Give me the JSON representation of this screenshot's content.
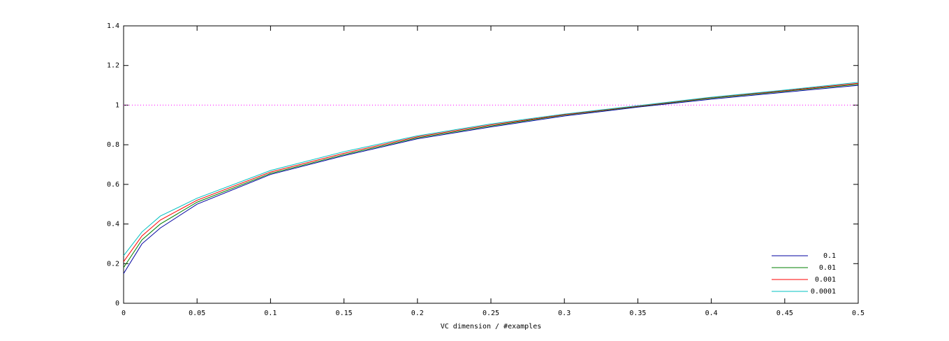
{
  "chart_data": {
    "type": "line",
    "x_label": "VC dimension / #examples",
    "x": [
      0,
      0.0125,
      0.025,
      0.05,
      0.1,
      0.15,
      0.2,
      0.25,
      0.3,
      0.35,
      0.4,
      0.45,
      0.5
    ],
    "series": [
      {
        "name": "0.1",
        "color": "#0000a0",
        "values": [
          0.15,
          0.3,
          0.38,
          0.5,
          0.65,
          0.745,
          0.83,
          0.89,
          0.945,
          0.99,
          1.03,
          1.065,
          1.1
        ]
      },
      {
        "name": "0.01",
        "color": "#008000",
        "values": [
          0.18,
          0.32,
          0.4,
          0.51,
          0.655,
          0.75,
          0.835,
          0.895,
          0.95,
          0.993,
          1.035,
          1.07,
          1.105
        ]
      },
      {
        "name": "0.001",
        "color": "#ff0000",
        "values": [
          0.21,
          0.34,
          0.42,
          0.52,
          0.662,
          0.757,
          0.84,
          0.9,
          0.952,
          0.995,
          1.038,
          1.073,
          1.11
        ]
      },
      {
        "name": "0.0001",
        "color": "#00c0c0",
        "values": [
          0.24,
          0.36,
          0.44,
          0.53,
          0.67,
          0.765,
          0.845,
          0.905,
          0.955,
          0.997,
          1.04,
          1.076,
          1.115
        ]
      }
    ],
    "reference_line": 1,
    "reference_color": "#ff00ff",
    "xlim": [
      0,
      0.5
    ],
    "xticks": [
      0,
      0.05,
      0.1,
      0.15,
      0.2,
      0.25,
      0.3,
      0.35,
      0.4,
      0.45,
      0.5
    ],
    "ylim": [
      0,
      1.4
    ],
    "yticks": [
      0,
      0.2,
      0.4,
      0.6,
      0.8,
      1,
      1.2,
      1.4
    ],
    "legend": "bottom-right"
  }
}
